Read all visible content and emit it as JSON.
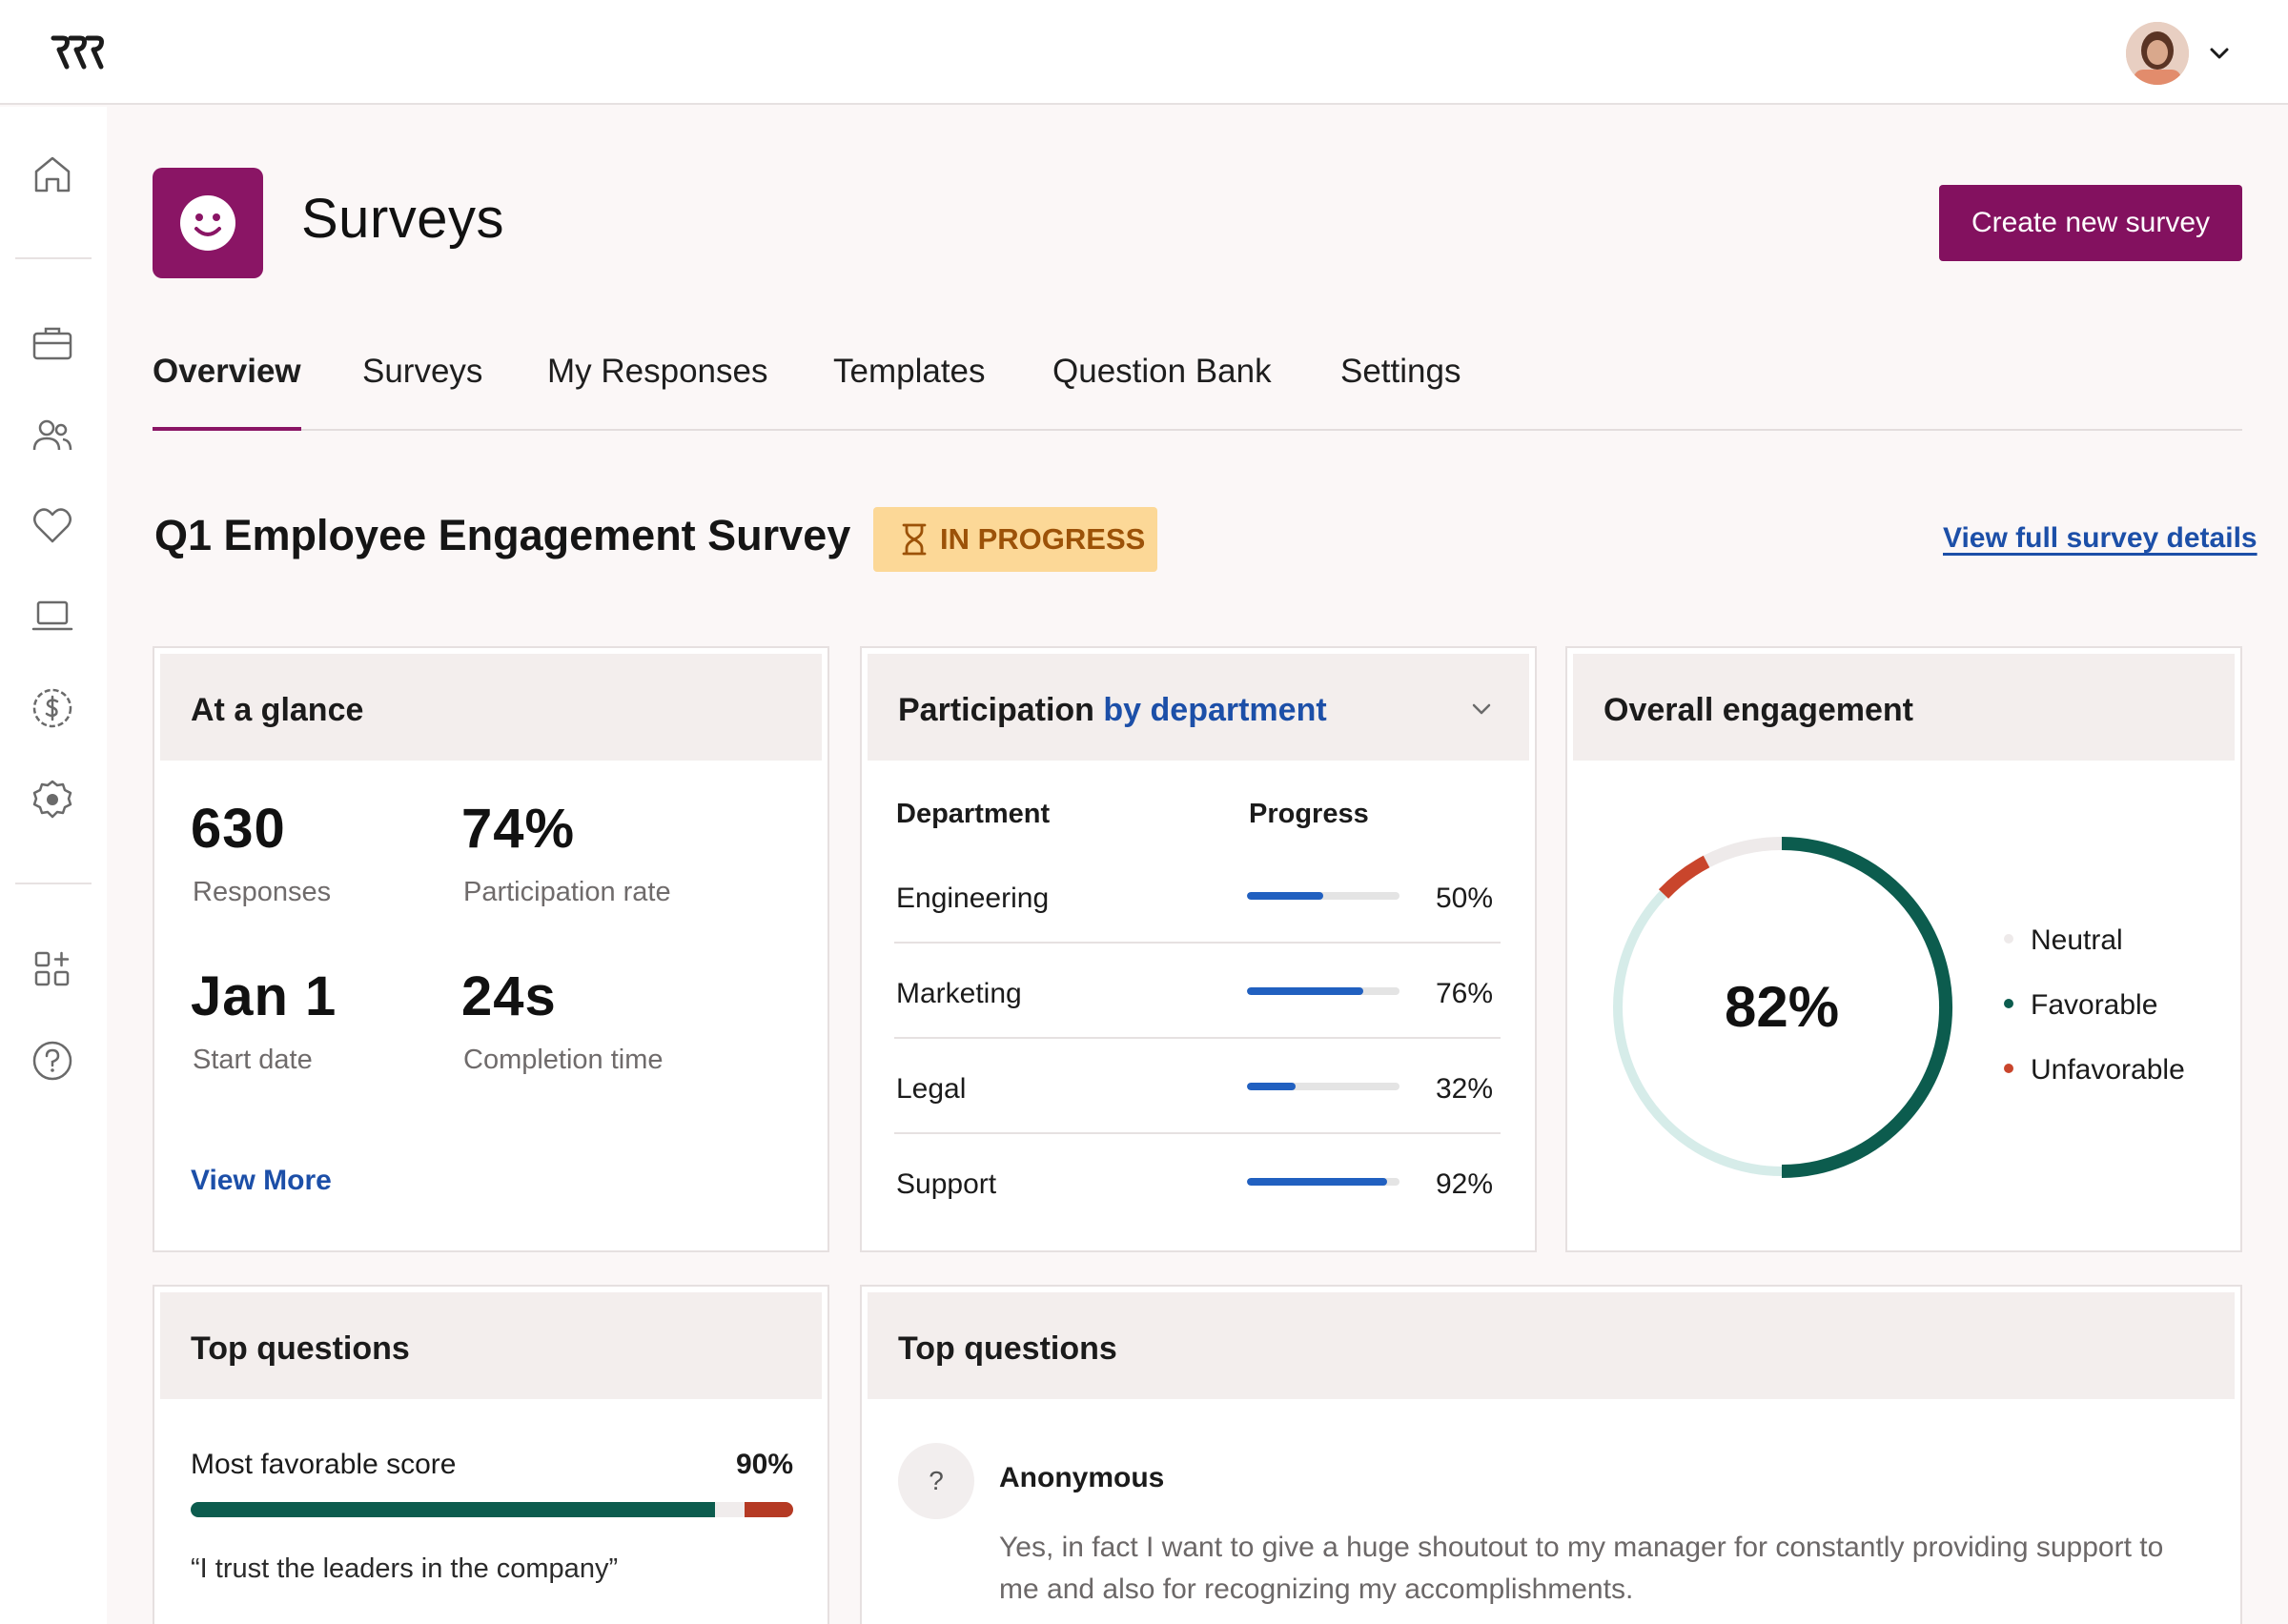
{
  "header": {
    "page_title": "Surveys",
    "create_button": "Create new survey"
  },
  "tabs": [
    {
      "label": "Overview",
      "active": true
    },
    {
      "label": "Surveys"
    },
    {
      "label": "My Responses"
    },
    {
      "label": "Templates"
    },
    {
      "label": "Question Bank"
    },
    {
      "label": "Settings"
    }
  ],
  "sidebar": {
    "icons": [
      "home-icon",
      "briefcase-icon",
      "people-icon",
      "heart-icon",
      "laptop-icon",
      "dollar-icon",
      "settings-icon",
      "apps-icon",
      "help-icon"
    ]
  },
  "survey": {
    "title": "Q1 Employee Engagement Survey",
    "status": "IN PROGRESS",
    "details_link": "View full survey details"
  },
  "at_a_glance": {
    "title": "At a glance",
    "stats": [
      {
        "value": "630",
        "label": "Responses"
      },
      {
        "value": "74%",
        "label": "Participation rate"
      },
      {
        "value": "Jan 1",
        "label": "Start date"
      },
      {
        "value": "24s",
        "label": "Completion time"
      }
    ],
    "view_more": "View More"
  },
  "participation": {
    "title_prefix": "Participation",
    "title_accent": "by department",
    "col_department": "Department",
    "col_progress": "Progress",
    "rows": [
      {
        "name": "Engineering",
        "value": 0.5,
        "pct": "50%"
      },
      {
        "name": "Marketing",
        "value": 0.76,
        "pct": "76%"
      },
      {
        "name": "Legal",
        "value": 0.32,
        "pct": "32%"
      },
      {
        "name": "Support",
        "value": 0.92,
        "pct": "92%"
      }
    ]
  },
  "engagement": {
    "title": "Overall engagement",
    "value": "82%",
    "legend": [
      {
        "label": "Neutral",
        "color": "#eeeaea"
      },
      {
        "label": "Favorable",
        "color": "#0c5c4e"
      },
      {
        "label": "Unfavorable",
        "color": "#c9452c"
      }
    ]
  },
  "top_questions_left": {
    "title": "Top questions",
    "label": "Most favorable score",
    "pct": "90%",
    "quote": "“I trust the leaders in the company”",
    "colors": {
      "favorable": "#0c5c4e",
      "neutral": "#f0ecec",
      "unfavorable": "#b53a24"
    }
  },
  "top_questions_right": {
    "title": "Top questions",
    "avatar_symbol": "?",
    "author": "Anonymous",
    "text": "Yes, in fact I want to give a huge shoutout to my manager for constantly providing support to me and also for recognizing my accomplishments."
  },
  "colors": {
    "brand": "#83115f",
    "link": "#1c4fa8",
    "badge_bg": "#fcd897",
    "badge_text": "#9c5208",
    "bar": "#2160c0"
  }
}
